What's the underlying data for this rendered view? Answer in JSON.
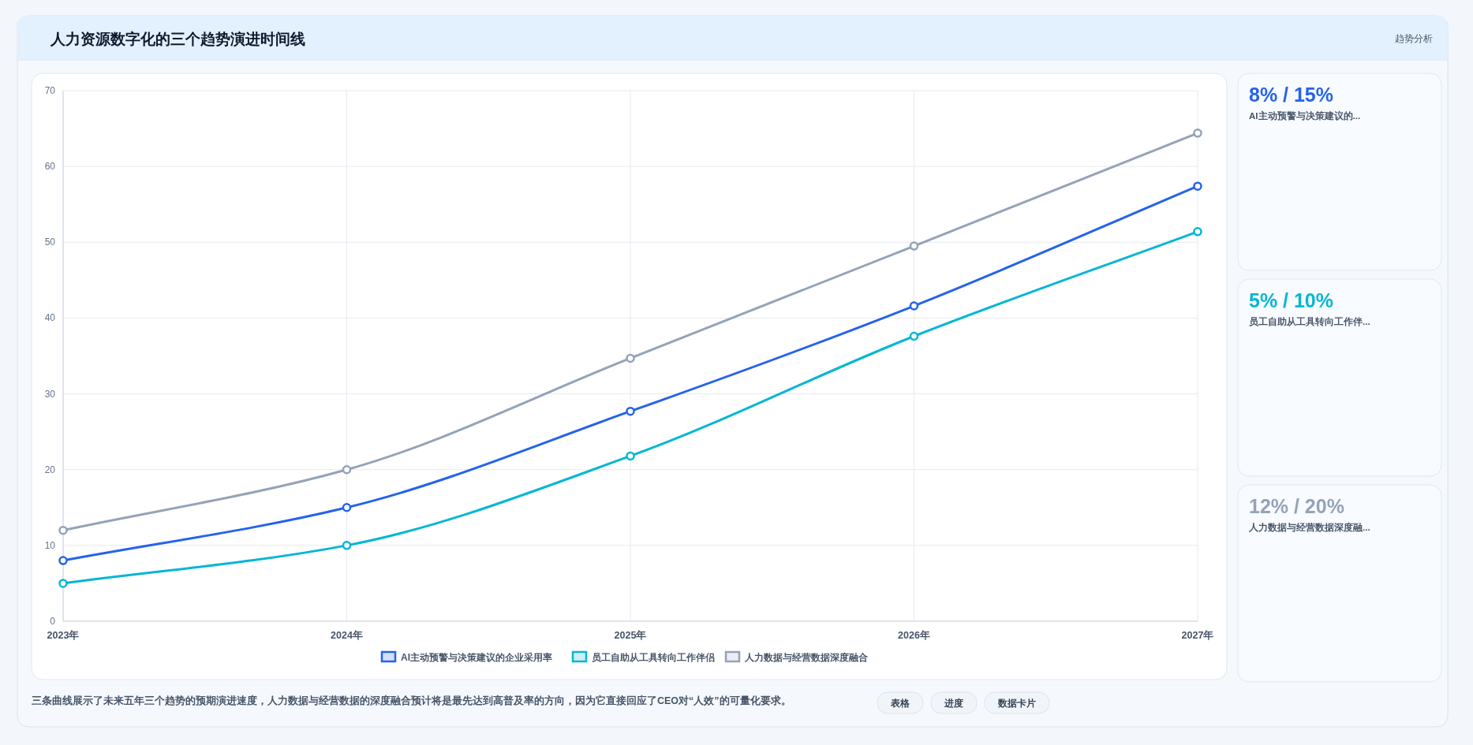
{
  "chart_data": [
    {
      "type": "line",
      "title": "人力资源数字化的三个趋势演进时间线",
      "annotations": [
        "趋势分析",
        "三条曲线展示了未来五年三个趋势的预期演进速度，人力数据与经营数据的深度融合预计将是最先达到高普及率的方向，因为它直接回应了CEO对“人效”的可量化要求。",
        "表格",
        "进度",
        "数据卡片"
      ],
      "categories": [
        "2023年",
        "2024年",
        "2025年",
        "2026年",
        "2027年"
      ],
      "series": [
        {
          "name": "AI主动预警与决策建议的企业采用率",
          "color": "#2563eb",
          "values": [
            8,
            15,
            27.7,
            41.6,
            57.4
          ]
        },
        {
          "name": "员工自助从工具转向工作伴侣",
          "color": "#06b6d4",
          "values": [
            5,
            10,
            21.8,
            37.6,
            51.4
          ]
        },
        {
          "name": "人力数据与经营数据深度融合",
          "color": "#94a3b8",
          "values": [
            12,
            20,
            34.7,
            49.5,
            64.4
          ]
        }
      ],
      "ylim": [
        0,
        70
      ],
      "yticks": [
        0,
        10,
        20,
        30,
        40,
        50,
        60,
        70
      ],
      "grid": true,
      "legend": "bottom",
      "marker": "circle",
      "line_style": "solid"
    },
    {
      "type": "other",
      "annotations": [
        "8% / 15%",
        "AI主动预警与决策建议的...",
        "5% / 10%",
        "员工自助从工具转向工作伴...",
        "12% / 20%",
        "人力数据与经营数据深度融..."
      ],
      "colors": [
        "#2563eb",
        "#06b6d4",
        "#94a3b8"
      ]
    }
  ]
}
